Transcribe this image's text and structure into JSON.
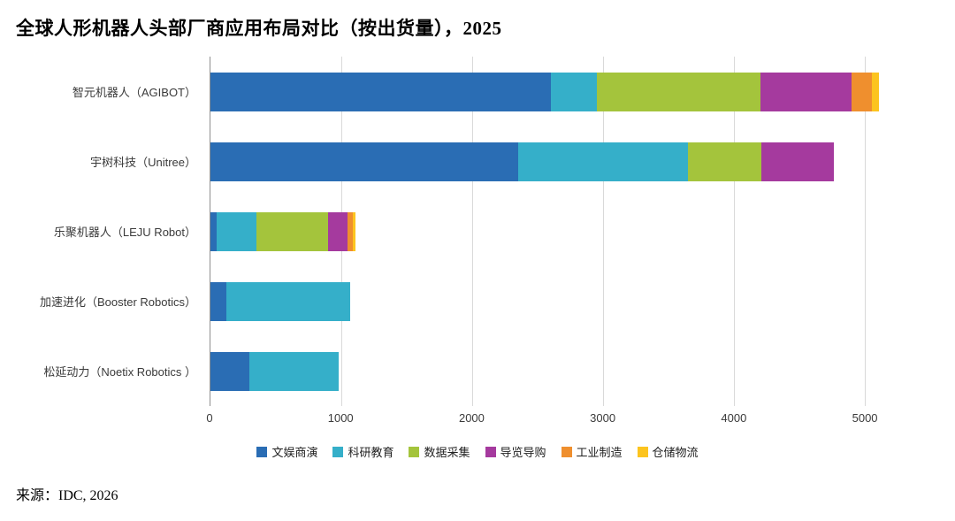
{
  "chart_data": {
    "type": "bar",
    "orientation": "horizontal",
    "stacked": true,
    "title": "全球人形机器人头部厂商应用布局对比（按出货量），2025",
    "source": "来源：IDC, 2026",
    "categories": [
      "智元机器人（AGIBOT）",
      "宇树科技（Unitree）",
      "乐聚机器人（LEJU Robot）",
      "加速进化（Booster Robotics）",
      "松延动力（Noetix Robotics ）"
    ],
    "series": [
      {
        "name": "文娱商演",
        "color": "#2a6db4",
        "values": [
          2600,
          2350,
          50,
          120,
          300
        ]
      },
      {
        "name": "科研教育",
        "color": "#35afc9",
        "values": [
          350,
          1300,
          300,
          950,
          680
        ]
      },
      {
        "name": "数据采集",
        "color": "#a4c43c",
        "values": [
          1250,
          560,
          550,
          0,
          0
        ]
      },
      {
        "name": "导览导购",
        "color": "#a53a9e",
        "values": [
          700,
          550,
          150,
          0,
          0
        ]
      },
      {
        "name": "工业制造",
        "color": "#ef8f2e",
        "values": [
          150,
          0,
          40,
          0,
          0
        ]
      },
      {
        "name": "仓储物流",
        "color": "#fcc41f",
        "values": [
          60,
          0,
          20,
          0,
          0
        ]
      }
    ],
    "totals": [
      5110,
      4760,
      1110,
      1070,
      980
    ],
    "xlim": [
      0,
      5330
    ],
    "ticks": [
      0,
      1000,
      2000,
      3000,
      4000,
      5000
    ],
    "grid": "vertical",
    "legend_position": "bottom"
  }
}
